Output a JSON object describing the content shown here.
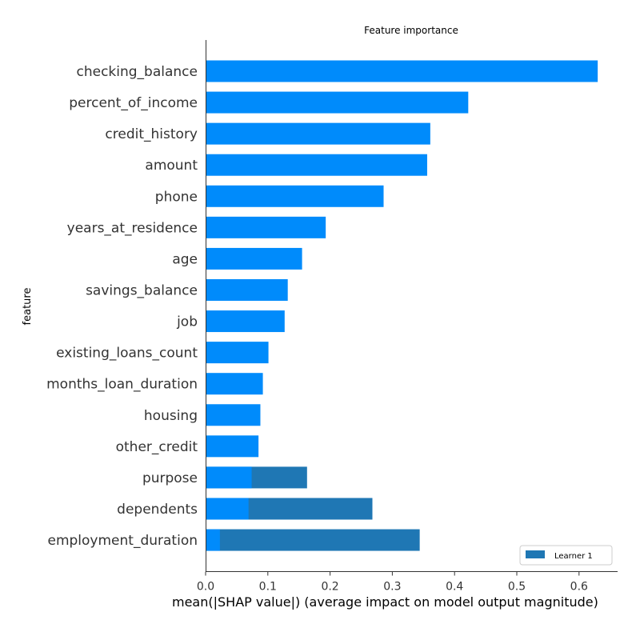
{
  "chart_data": {
    "type": "bar",
    "orientation": "horizontal",
    "title": "Feature importance",
    "xlabel": "mean(|SHAP value|) (average impact on model output magnitude)",
    "ylabel": "feature",
    "xlim": [
      0,
      0.66
    ],
    "xticks": [
      "0.0",
      "0.1",
      "0.2",
      "0.3",
      "0.4",
      "0.5",
      "0.6"
    ],
    "categories": [
      "checking_balance",
      "percent_of_income",
      "credit_history",
      "amount",
      "phone",
      "years_at_residence",
      "age",
      "savings_balance",
      "job",
      "existing_loans_count",
      "months_loan_duration",
      "housing",
      "other_credit",
      "purpose",
      "dependents",
      "employment_duration"
    ],
    "series": [
      {
        "color": "#008bfb",
        "values": [
          0.63,
          0.422,
          0.361,
          0.356,
          0.286,
          0.193,
          0.155,
          0.132,
          0.127,
          0.101,
          0.092,
          0.088,
          0.085,
          0.074,
          0.069,
          0.023
        ]
      },
      {
        "name": "Learner 1",
        "color": "#1f77b4",
        "values": [
          null,
          null,
          null,
          null,
          null,
          null,
          null,
          null,
          null,
          null,
          null,
          null,
          null,
          0.163,
          0.268,
          0.344
        ]
      }
    ],
    "legend": {
      "position": "bottom-right"
    },
    "grid": false
  }
}
